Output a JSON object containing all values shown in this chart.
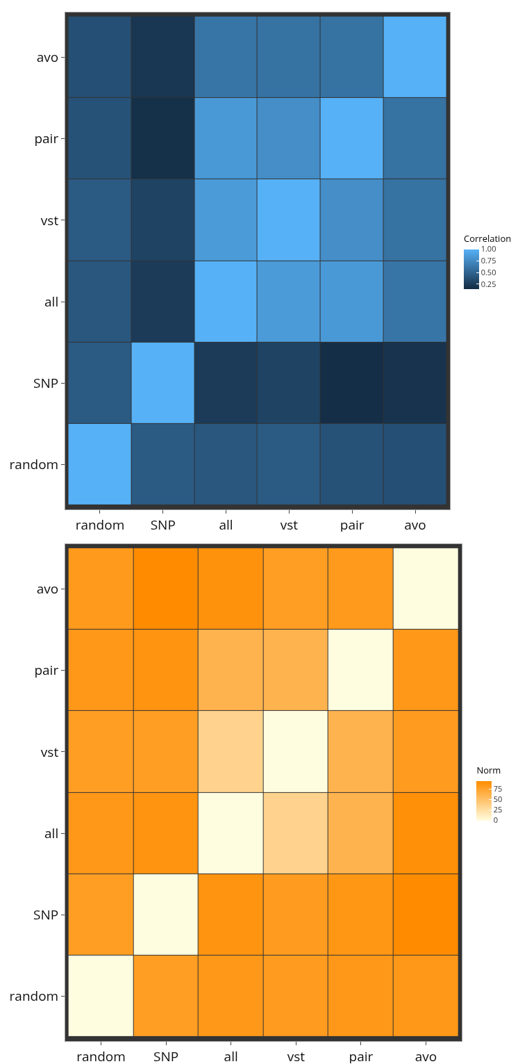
{
  "chart_data": [
    {
      "type": "heatmap",
      "clabel": "Correlation",
      "categories": [
        "random",
        "SNP",
        "all",
        "vst",
        "pair",
        "avo"
      ],
      "y_categories": [
        "avo",
        "pair",
        "vst",
        "all",
        "SNP",
        "random"
      ],
      "cells": [
        [
          0.38,
          0.22,
          0.62,
          0.6,
          0.6,
          1
        ],
        [
          0.4,
          0.18,
          0.85,
          0.78,
          1,
          0.6
        ],
        [
          0.45,
          0.3,
          0.86,
          1,
          0.78,
          0.6
        ],
        [
          0.43,
          0.25,
          1,
          0.86,
          0.85,
          0.62
        ],
        [
          0.45,
          1,
          0.25,
          0.3,
          0.17,
          0.2
        ],
        [
          1,
          0.45,
          0.43,
          0.45,
          0.4,
          0.38
        ]
      ],
      "clim": [
        0.15,
        1
      ],
      "cticks": [
        0.25,
        {
          "value": 0.5,
          "label": "0.50"
        },
        {
          "value": 0.75,
          "label": "0.75"
        },
        {
          "value": 1,
          "label": "1.00"
        }
      ]
    },
    {
      "type": "heatmap",
      "clabel": "Norm",
      "categories": [
        "random",
        "SNP",
        "all",
        "vst",
        "pair",
        "avo"
      ],
      "y_categories": [
        "avo",
        "pair",
        "vst",
        "all",
        "SNP",
        "random"
      ],
      "cells": [
        [
          83,
          95,
          90,
          80,
          83,
          0
        ],
        [
          85,
          88,
          62,
          62,
          0,
          85
        ],
        [
          80,
          80,
          35,
          0,
          62,
          82
        ],
        [
          85,
          88,
          0,
          35,
          62,
          92
        ],
        [
          80,
          0,
          88,
          82,
          86,
          95
        ],
        [
          0,
          80,
          85,
          82,
          85,
          85
        ]
      ],
      "clim": [
        0,
        95
      ],
      "cticks": [
        0,
        25,
        50,
        75
      ]
    }
  ]
}
